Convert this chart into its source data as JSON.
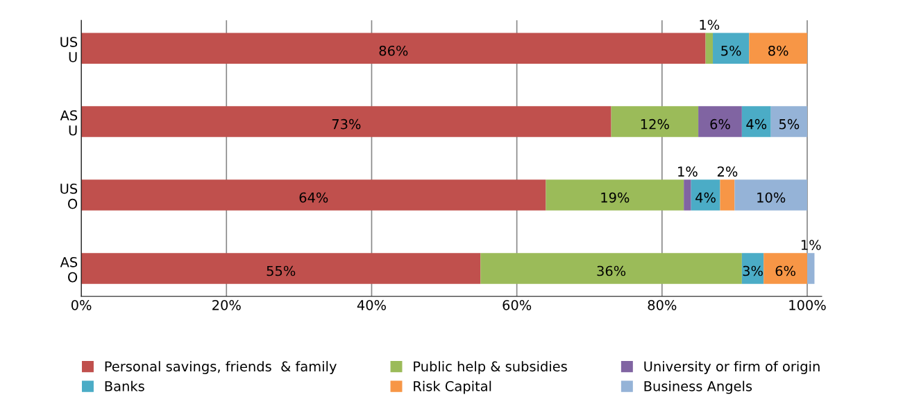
{
  "chart_data": {
    "type": "bar",
    "orientation": "horizontal",
    "stacked": true,
    "categories": [
      "US\nU",
      "AS\nU",
      "US\nO",
      "AS\nO"
    ],
    "series": [
      {
        "name": "Personal savings, friends  & family",
        "color": "#c0504d",
        "values": [
          86,
          73,
          64,
          55
        ],
        "value_labels": [
          "86%",
          "73%",
          "64%",
          "55%"
        ]
      },
      {
        "name": "Public help & subsidies",
        "color": "#9bbb59",
        "values": [
          1,
          12,
          19,
          36
        ],
        "value_labels": [
          "1%",
          "12%",
          "19%",
          "36%"
        ]
      },
      {
        "name": "University or firm of origin",
        "color": "#8064a2",
        "values": [
          null,
          6,
          1,
          null
        ],
        "value_labels": [
          null,
          "6%",
          "1%",
          null
        ]
      },
      {
        "name": "Banks",
        "color": "#4bacc6",
        "values": [
          5,
          4,
          4,
          3
        ],
        "value_labels": [
          "5%",
          "4%",
          "4%",
          "3%"
        ]
      },
      {
        "name": "Risk Capital",
        "color": "#f79646",
        "values": [
          8,
          null,
          2,
          6
        ],
        "value_labels": [
          "8%",
          null,
          "2%",
          "6%"
        ]
      },
      {
        "name": "Business Angels",
        "color": "#95b3d7",
        "values": [
          null,
          5,
          10,
          1
        ],
        "value_labels": [
          null,
          "5%",
          "10%",
          "1%"
        ]
      }
    ],
    "xlim": [
      0,
      102
    ],
    "xticks": [
      {
        "value": 0,
        "label": "0%"
      },
      {
        "value": 20,
        "label": "20%"
      },
      {
        "value": 40,
        "label": "40%"
      },
      {
        "value": 60,
        "label": "60%"
      },
      {
        "value": 80,
        "label": "80%"
      },
      {
        "value": 100,
        "label": "100%"
      }
    ],
    "grid": "x",
    "legend": "bottom"
  }
}
